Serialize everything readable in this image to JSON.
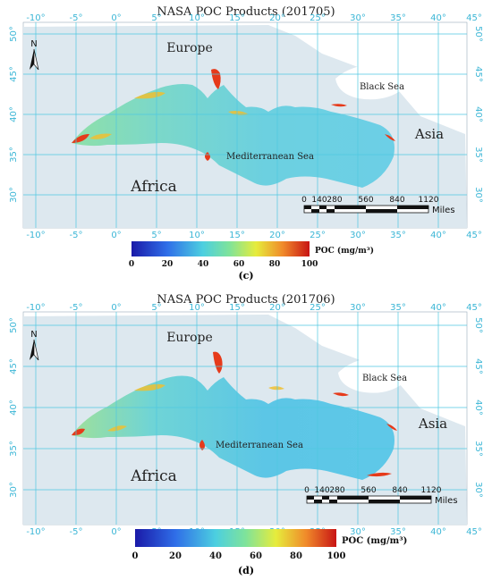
{
  "panels": [
    {
      "title": "NASA POC Products (201705)",
      "caption": "(c)",
      "labels": {
        "europe": "Europe",
        "africa": "Africa",
        "asia": "Asia",
        "black_sea": "Black Sea",
        "med_sea": "Mediterranean Sea",
        "north": "N"
      },
      "lon_ticks": [
        "-10°",
        "-5°",
        "0°",
        "5°",
        "10°",
        "15°",
        "20°",
        "25°",
        "30°",
        "35°",
        "40°",
        "45°"
      ],
      "lat_ticks": [
        "50°",
        "45°",
        "40°",
        "35°",
        "30°"
      ],
      "scale": {
        "ticks": [
          "0",
          "140",
          "280",
          "560",
          "840",
          "1120"
        ],
        "unit": "Miles"
      },
      "colorbar": {
        "ticks": [
          "0",
          "20",
          "40",
          "60",
          "80",
          "100"
        ],
        "label": "POC (mg/m³)"
      }
    },
    {
      "title": "NASA POC Products (201706)",
      "caption": "(d)",
      "labels": {
        "europe": "Europe",
        "africa": "Africa",
        "asia": "Asia",
        "black_sea": "Black Sea",
        "med_sea": "Mediterranean Sea",
        "north": "N"
      },
      "lon_ticks": [
        "-10°",
        "-5°",
        "0°",
        "5°",
        "10°",
        "15°",
        "20°",
        "25°",
        "30°",
        "35°",
        "40°",
        "45°"
      ],
      "lat_ticks": [
        "50°",
        "45°",
        "40°",
        "35°",
        "30°"
      ],
      "scale": {
        "ticks": [
          "0",
          "140",
          "280",
          "560",
          "840",
          "1120"
        ],
        "unit": "Miles"
      },
      "colorbar": {
        "ticks": [
          "0",
          "20",
          "40",
          "60",
          "80",
          "100"
        ],
        "label": "POC (mg/m³)"
      }
    }
  ],
  "colors": {
    "grid": "#4fc8e0",
    "land": "#dde8ef",
    "sea_mid": "#6fd6d8",
    "high": "#e63a1a",
    "black_sea": "#ffffff"
  }
}
